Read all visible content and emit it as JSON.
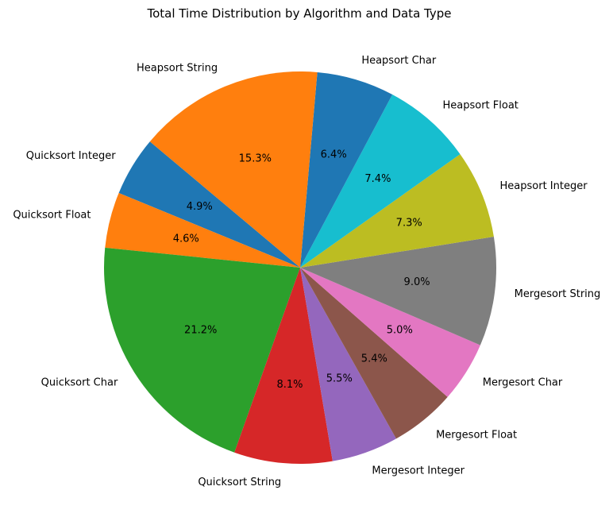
{
  "chart_data": {
    "type": "pie",
    "title": "Total Time Distribution by Algorithm and Data Type",
    "slices": [
      {
        "label": "Quicksort Integer",
        "value": 4.9,
        "pct_text": "4.9%",
        "color": "#1f77b4"
      },
      {
        "label": "Quicksort Float",
        "value": 4.6,
        "pct_text": "4.6%",
        "color": "#ff7f0e"
      },
      {
        "label": "Quicksort Char",
        "value": 21.2,
        "pct_text": "21.2%",
        "color": "#2ca02c"
      },
      {
        "label": "Quicksort String",
        "value": 8.1,
        "pct_text": "8.1%",
        "color": "#d62728"
      },
      {
        "label": "Mergesort Integer",
        "value": 5.5,
        "pct_text": "5.5%",
        "color": "#9467bd"
      },
      {
        "label": "Mergesort Float",
        "value": 5.4,
        "pct_text": "5.4%",
        "color": "#8c564b"
      },
      {
        "label": "Mergesort Char",
        "value": 5.0,
        "pct_text": "5.0%",
        "color": "#e377c2"
      },
      {
        "label": "Mergesort String",
        "value": 9.0,
        "pct_text": "9.0%",
        "color": "#7f7f7f"
      },
      {
        "label": "Heapsort Integer",
        "value": 7.3,
        "pct_text": "7.3%",
        "color": "#bcbd22"
      },
      {
        "label": "Heapsort Float",
        "value": 7.4,
        "pct_text": "7.4%",
        "color": "#17becf"
      },
      {
        "label": "Heapsort Char",
        "value": 6.4,
        "pct_text": "6.4%",
        "color": "#1f77b4"
      },
      {
        "label": "Heapsort String",
        "value": 15.3,
        "pct_text": "15.3%",
        "color": "#ff7f0e"
      }
    ],
    "start_angle_deg": 140,
    "direction": "counterclockwise"
  }
}
